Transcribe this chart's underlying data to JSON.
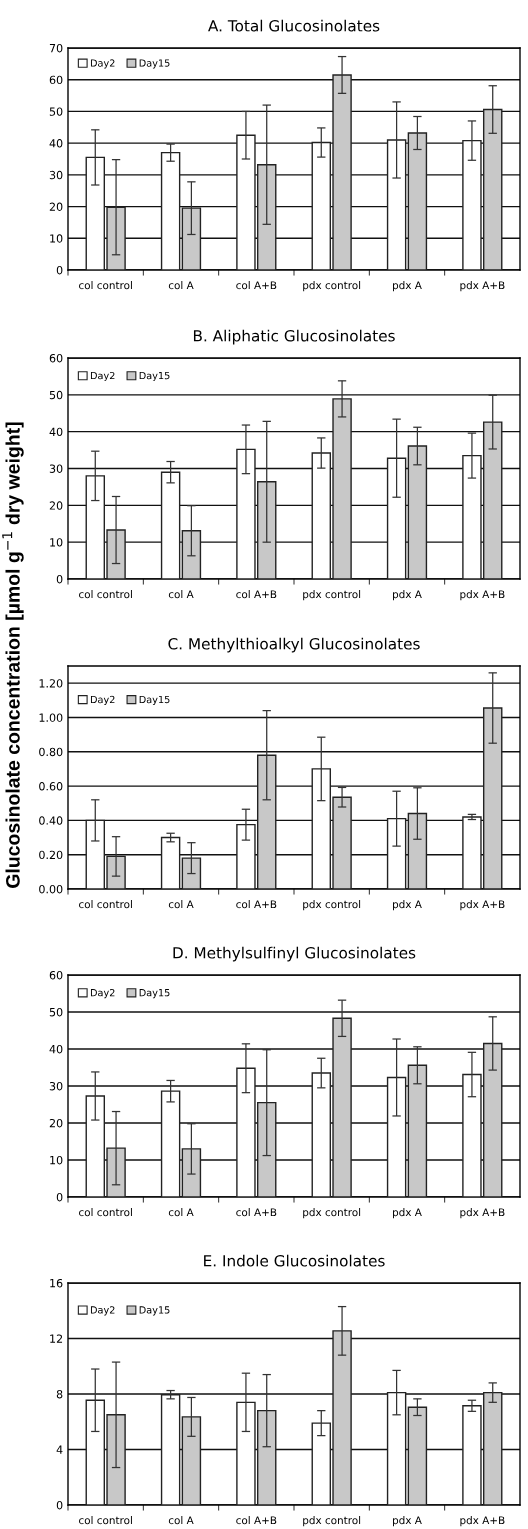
{
  "chart_data": [
    {
      "type": "bar",
      "title": "A. Total Glucosinolates",
      "categories": [
        "col control",
        "col A",
        "col A+B",
        "pdx control",
        "pdx A",
        "pdx A+B"
      ],
      "ylim": [
        0,
        70
      ],
      "yticks": [
        0,
        10,
        20,
        30,
        40,
        50,
        60,
        70
      ],
      "grid": "y",
      "legend": "top left",
      "series": [
        {
          "name": "Day2",
          "color": "#ffffff",
          "values": [
            35.5,
            37,
            42.5,
            40.2,
            41,
            40.8
          ],
          "errors": [
            8.7,
            2.7,
            7.5,
            4.6,
            12,
            6.2
          ]
        },
        {
          "name": "Day15",
          "color": "#c8c8c8",
          "values": [
            19.8,
            19.5,
            33.2,
            61.5,
            43.2,
            50.6
          ],
          "errors": [
            15,
            8.3,
            18.8,
            5.8,
            5.2,
            7.5
          ]
        }
      ]
    },
    {
      "type": "bar",
      "title": "B. Aliphatic Glucosinolates",
      "categories": [
        "col control",
        "col A",
        "col A+B",
        "pdx control",
        "pdx A",
        "pdx A+B"
      ],
      "ylim": [
        0,
        60
      ],
      "yticks": [
        0,
        10,
        20,
        30,
        40,
        50,
        60
      ],
      "grid": "y",
      "legend": "top left",
      "series": [
        {
          "name": "Day2",
          "color": "#ffffff",
          "values": [
            28,
            29,
            35.2,
            34.2,
            32.8,
            33.5
          ],
          "errors": [
            6.7,
            2.9,
            6.6,
            4.1,
            10.6,
            6.1
          ]
        },
        {
          "name": "Day15",
          "color": "#c8c8c8",
          "values": [
            13.3,
            13.1,
            26.4,
            48.9,
            36.1,
            42.6
          ],
          "errors": [
            9.1,
            6.8,
            16.4,
            4.9,
            5.1,
            7.3
          ]
        }
      ]
    },
    {
      "type": "bar",
      "title": "C. Methylthioalkyl Glucosinolates",
      "ylabel": "Glucosinolate concentration [µmol g$^{−1}$ dry weight]",
      "categories": [
        "col control",
        "col A",
        "col A+B",
        "pdx control",
        "pdx A",
        "pdx A+B"
      ],
      "ylim": [
        0,
        1.3
      ],
      "yticks": [
        {
          "value": 0,
          "label": "0.00"
        },
        {
          "value": 0.2,
          "label": "0.20"
        },
        {
          "value": 0.4,
          "label": "0.40"
        },
        {
          "value": 0.6,
          "label": "0.60"
        },
        {
          "value": 0.8,
          "label": "0.80"
        },
        {
          "value": 1.0,
          "label": "1.00"
        },
        {
          "value": 1.2,
          "label": "1.20"
        }
      ],
      "grid": "y",
      "legend": "top left",
      "series": [
        {
          "name": "Day2",
          "color": "#ffffff",
          "values": [
            0.4,
            0.3,
            0.375,
            0.7,
            0.41,
            0.42
          ],
          "errors": [
            0.12,
            0.025,
            0.09,
            0.185,
            0.16,
            0.015
          ]
        },
        {
          "name": "Day15",
          "color": "#c8c8c8",
          "values": [
            0.19,
            0.18,
            0.78,
            0.535,
            0.44,
            1.055
          ],
          "errors": [
            0.115,
            0.09,
            0.26,
            0.057,
            0.15,
            0.205
          ]
        }
      ]
    },
    {
      "type": "bar",
      "title": "D. Methylsulfinyl Glucosinolates",
      "categories": [
        "col control",
        "col A",
        "col A+B",
        "pdx control",
        "pdx A",
        "pdx A+B"
      ],
      "ylim": [
        0,
        60
      ],
      "yticks": [
        0,
        10,
        20,
        30,
        40,
        50,
        60
      ],
      "grid": "y",
      "legend": "top left",
      "series": [
        {
          "name": "Day2",
          "color": "#ffffff",
          "values": [
            27.3,
            28.6,
            34.8,
            33.5,
            32.3,
            33.1
          ],
          "errors": [
            6.5,
            2.9,
            6.6,
            4,
            10.4,
            6
          ]
        },
        {
          "name": "Day15",
          "color": "#c8c8c8",
          "values": [
            13.2,
            13,
            25.5,
            48.3,
            35.6,
            41.5
          ],
          "errors": [
            9.9,
            6.8,
            14.3,
            4.9,
            5,
            7.2
          ]
        }
      ]
    },
    {
      "type": "bar",
      "title": "E. Indole Glucosinolates",
      "categories": [
        "col control",
        "col A",
        "col A+B",
        "pdx control",
        "pdx A",
        "pdx A+B"
      ],
      "ylim": [
        0,
        16
      ],
      "yticks": [
        0,
        4,
        8,
        12,
        16
      ],
      "grid": "y",
      "legend": "top left",
      "series": [
        {
          "name": "Day2",
          "color": "#ffffff",
          "values": [
            7.55,
            7.95,
            7.4,
            5.9,
            8.1,
            7.15
          ],
          "errors": [
            2.25,
            0.3,
            2.1,
            0.9,
            1.6,
            0.4
          ]
        },
        {
          "name": "Day15",
          "color": "#c8c8c8",
          "values": [
            6.5,
            6.35,
            6.8,
            12.55,
            7.05,
            8.1
          ],
          "errors": [
            3.8,
            1.4,
            2.6,
            1.75,
            0.6,
            0.7
          ]
        }
      ]
    }
  ]
}
